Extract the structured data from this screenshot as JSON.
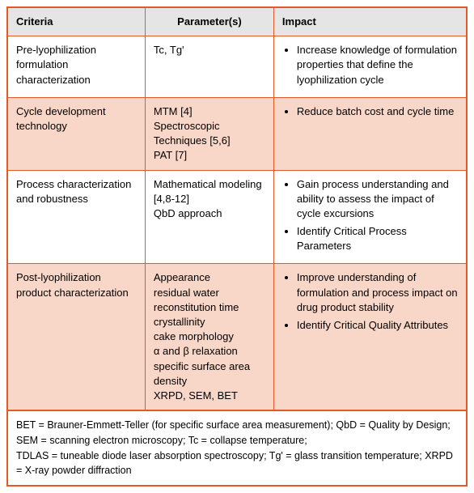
{
  "colors": {
    "border": "#e35a2a",
    "header_bg": "#e5e5e5",
    "alt_row_bg": "#f9d7c8"
  },
  "headers": {
    "criteria": "Criteria",
    "parameters": "Parameter(s)",
    "impact": "Impact"
  },
  "rows": [
    {
      "criteria": "Pre-lyophilization formulation characterization",
      "parameters": [
        "Tc, Tg'"
      ],
      "impact": [
        "Increase knowledge of formulation properties that define the lyophilization cycle"
      ],
      "alt": false
    },
    {
      "criteria": "Cycle development technology",
      "parameters": [
        "MTM [4]",
        "Spectroscopic Techniques  [5,6]",
        "PAT [7]"
      ],
      "impact": [
        "Reduce batch cost and cycle time"
      ],
      "alt": true
    },
    {
      "criteria": "Process characterization and robustness",
      "parameters": [
        "Mathematical modeling [4,8-12]",
        "QbD approach"
      ],
      "impact": [
        "Gain process understanding and ability to assess the impact of cycle excursions",
        "Identify Critical Process Parameters"
      ],
      "alt": false
    },
    {
      "criteria": "Post-lyophilization product characterization",
      "parameters": [
        "Appearance",
        "residual water",
        "reconstitution time",
        "crystallinity",
        "cake morphology",
        "α and β relaxation",
        "specific surface area",
        "density",
        "XRPD, SEM, BET"
      ],
      "impact": [
        "Improve understanding of formulation and process impact on drug product stability",
        "Identify Critical Quality Attributes"
      ],
      "alt": true
    }
  ],
  "footnote": "BET = Brauner-Emmett-Teller (for specific surface area measurement); QbD = Quality by Design; SEM = scanning electron microscopy; Tc = collapse temperature;\nTDLAS = tuneable diode laser absorption spectroscopy; Tg' = glass transition temperature; XRPD = X-ray powder diffraction"
}
